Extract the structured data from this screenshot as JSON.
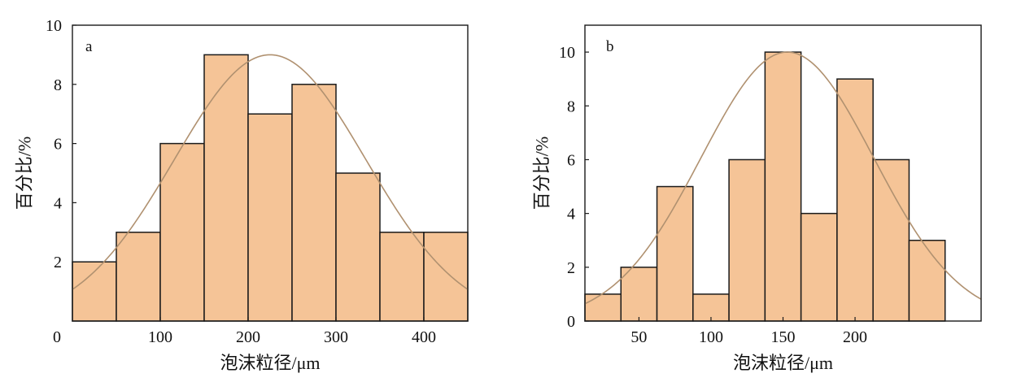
{
  "figure": {
    "colors": {
      "bar_fill": "#F5C497",
      "bar_edge": "#1A1A1A",
      "curve": "#B09170",
      "axis": "#1A1A1A"
    }
  },
  "chart_data": [
    {
      "panel": "a",
      "type": "bar",
      "bin_edges": [
        0,
        50,
        100,
        150,
        200,
        250,
        300,
        350,
        400,
        450
      ],
      "values": [
        2,
        3,
        6,
        9,
        7,
        8,
        5,
        3,
        3
      ],
      "normal_fit": {
        "mean": 225,
        "sd": 109,
        "peak": 9
      },
      "xlabel": "泡沫粒径/μm",
      "ylabel": "百分比/%",
      "xlim": [
        0,
        450
      ],
      "ylim": [
        0,
        10
      ],
      "xticks": [
        100,
        200,
        300,
        400
      ],
      "yticks": [
        2,
        4,
        6,
        8,
        10
      ],
      "origin_label": "0",
      "grid": false
    },
    {
      "panel": "b",
      "type": "bar",
      "bin_edges": [
        12.5,
        37.5,
        62.5,
        87.5,
        112.5,
        137.5,
        162.5,
        187.5,
        212.5,
        237.5,
        262.5
      ],
      "values": [
        1,
        2,
        5,
        1,
        6,
        10,
        4,
        9,
        6,
        3
      ],
      "normal_fit": {
        "mean": 153,
        "sd": 60,
        "peak": 10
      },
      "xlabel": "泡沫粒径/μm",
      "ylabel": "百分比/%",
      "xlim": [
        12.5,
        287.5
      ],
      "ylim": [
        0,
        11
      ],
      "xticks": [
        50,
        100,
        150,
        200
      ],
      "yticks": [
        0,
        2,
        4,
        6,
        8,
        10
      ],
      "grid": false
    }
  ]
}
